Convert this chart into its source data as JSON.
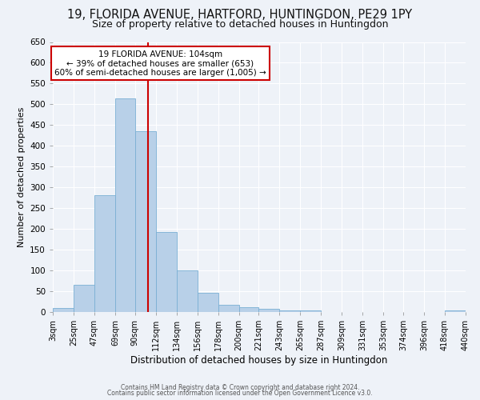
{
  "title1": "19, FLORIDA AVENUE, HARTFORD, HUNTINGDON, PE29 1PY",
  "title2": "Size of property relative to detached houses in Huntingdon",
  "xlabel": "Distribution of detached houses by size in Huntingdon",
  "ylabel": "Number of detached properties",
  "footer1": "Contains HM Land Registry data © Crown copyright and database right 2024.",
  "footer2": "Contains public sector information licensed under the Open Government Licence v3.0.",
  "annotation_line1": "19 FLORIDA AVENUE: 104sqm",
  "annotation_line2": "← 39% of detached houses are smaller (653)",
  "annotation_line3": "60% of semi-detached houses are larger (1,005) →",
  "bar_color": "#b8d0e8",
  "bar_edge_color": "#7aafd4",
  "vline_x": 104,
  "vline_color": "#cc0000",
  "bin_edges": [
    3,
    25,
    47,
    69,
    90,
    112,
    134,
    156,
    178,
    200,
    221,
    243,
    265,
    287,
    309,
    331,
    353,
    374,
    396,
    418,
    440
  ],
  "bar_heights": [
    10,
    65,
    282,
    515,
    435,
    193,
    101,
    46,
    18,
    12,
    7,
    3,
    3,
    0,
    0,
    0,
    0,
    0,
    0,
    3
  ],
  "ylim": [
    0,
    650
  ],
  "yticks": [
    0,
    50,
    100,
    150,
    200,
    250,
    300,
    350,
    400,
    450,
    500,
    550,
    600,
    650
  ],
  "background_color": "#eef2f8",
  "plot_bg_color": "#eef2f8",
  "grid_color": "#ffffff",
  "title1_fontsize": 10.5,
  "title2_fontsize": 9,
  "xlabel_fontsize": 8.5,
  "ylabel_fontsize": 8,
  "tick_fontsize": 7,
  "ytick_fontsize": 7.5,
  "annotation_box_color": "#ffffff",
  "annotation_box_edge": "#cc0000",
  "annotation_fontsize": 7.5
}
